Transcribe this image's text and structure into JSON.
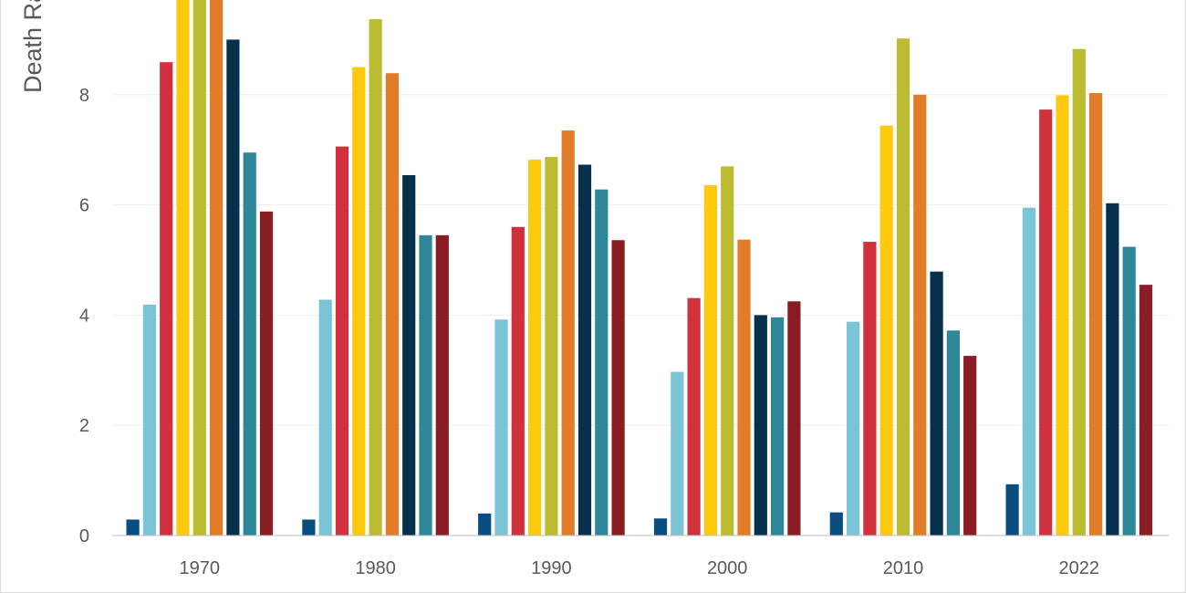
{
  "chart_data": {
    "type": "bar",
    "title": "",
    "xlabel": "",
    "ylabel": "Death Rate",
    "ylim": [
      0,
      9.7
    ],
    "yticks": [
      0,
      2,
      4,
      6,
      8
    ],
    "grid": true,
    "categories": [
      "1970",
      "1980",
      "1990",
      "2000",
      "2010",
      "2022"
    ],
    "series": [
      {
        "color": "#0a4d80",
        "values": [
          0.29,
          0.29,
          0.4,
          0.31,
          0.42,
          0.93
        ]
      },
      {
        "color": "#7bc4d6",
        "values": [
          4.19,
          4.28,
          3.92,
          2.97,
          3.88,
          5.95
        ]
      },
      {
        "color": "#d1313c",
        "values": [
          8.59,
          7.06,
          5.6,
          4.31,
          5.33,
          7.73
        ]
      },
      {
        "color": "#fdca0f",
        "values": [
          9.9,
          8.5,
          6.82,
          6.36,
          7.44,
          7.99
        ]
      },
      {
        "color": "#bcbc33",
        "values": [
          9.9,
          9.37,
          6.87,
          6.7,
          9.02,
          8.83
        ]
      },
      {
        "color": "#e17d28",
        "values": [
          9.9,
          8.39,
          7.35,
          5.37,
          8.0,
          8.03
        ]
      },
      {
        "color": "#07304d",
        "values": [
          9.0,
          6.54,
          6.73,
          4.0,
          4.79,
          6.03
        ]
      },
      {
        "color": "#2e8699",
        "values": [
          6.95,
          5.45,
          6.28,
          3.96,
          3.72,
          5.24
        ]
      },
      {
        "color": "#8a1c24",
        "values": [
          5.88,
          5.45,
          5.36,
          4.25,
          3.26,
          4.55
        ]
      }
    ]
  }
}
